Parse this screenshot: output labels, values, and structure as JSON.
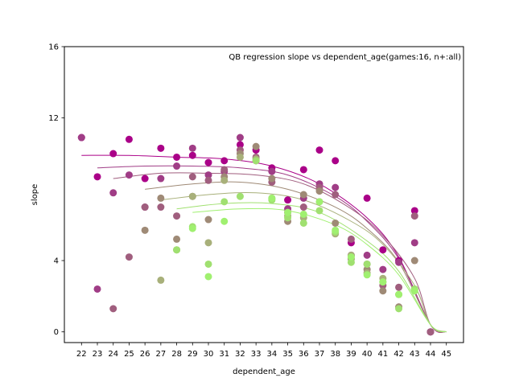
{
  "chart_data": {
    "type": "scatter",
    "title": "QB regression slope vs dependent_age(games:16, n+:all)",
    "xlabel": "dependent_age",
    "ylabel": "slope",
    "x_categories": [
      "22",
      "23",
      "24",
      "25",
      "26",
      "27",
      "28",
      "29",
      "30",
      "31",
      "32",
      "33",
      "34",
      "35",
      "36",
      "37",
      "38",
      "39",
      "40",
      "41",
      "42",
      "43",
      "44",
      "45"
    ],
    "y_ticks": [
      0,
      4,
      12,
      16
    ],
    "ylim": [
      -0.6,
      16
    ],
    "grid": false,
    "series": [
      {
        "color": "#aa0088",
        "points": [
          [
            22,
            10.9
          ],
          [
            23,
            8.7
          ],
          [
            24,
            10.0
          ],
          [
            25,
            10.8
          ],
          [
            26,
            8.6
          ],
          [
            27,
            10.3
          ],
          [
            28,
            9.8
          ],
          [
            29,
            9.9
          ],
          [
            30,
            9.5
          ],
          [
            31,
            9.6
          ],
          [
            32,
            10.5
          ],
          [
            33,
            10.2
          ],
          [
            34,
            9.2
          ],
          [
            35,
            7.4
          ],
          [
            36,
            9.1
          ],
          [
            37,
            10.2
          ],
          [
            38,
            9.6
          ],
          [
            39,
            5.0
          ],
          [
            40,
            7.5
          ],
          [
            41,
            4.6
          ],
          [
            42,
            4.0
          ],
          [
            43,
            6.8
          ],
          [
            44,
            0.0
          ]
        ],
        "curve": [
          [
            22,
            9.9
          ],
          [
            25,
            9.9
          ],
          [
            28,
            9.8
          ],
          [
            31,
            9.7
          ],
          [
            34,
            9.3
          ],
          [
            37,
            8.3
          ],
          [
            40,
            6.4
          ],
          [
            42,
            4.2
          ],
          [
            44,
            0.4
          ],
          [
            45,
            0.0
          ]
        ]
      },
      {
        "color": "#a03d86",
        "points": [
          [
            22,
            10.9
          ],
          [
            23,
            2.4
          ],
          [
            24,
            7.8
          ],
          [
            25,
            8.8
          ],
          [
            26,
            7.0
          ],
          [
            27,
            8.6
          ],
          [
            28,
            9.3
          ],
          [
            29,
            10.3
          ],
          [
            30,
            8.8
          ],
          [
            31,
            9.0
          ],
          [
            32,
            10.9
          ],
          [
            33,
            9.6
          ],
          [
            34,
            9.0
          ],
          [
            35,
            6.9
          ],
          [
            36,
            7.5
          ],
          [
            37,
            8.3
          ],
          [
            38,
            8.1
          ],
          [
            39,
            4.3
          ],
          [
            40,
            4.3
          ],
          [
            41,
            3.5
          ],
          [
            42,
            3.9
          ],
          [
            43,
            5.0
          ],
          [
            44,
            0.0
          ]
        ],
        "curve": [
          [
            23,
            9.2
          ],
          [
            26,
            9.3
          ],
          [
            29,
            9.3
          ],
          [
            32,
            9.2
          ],
          [
            35,
            8.8
          ],
          [
            38,
            7.6
          ],
          [
            40,
            6.2
          ],
          [
            42,
            4.1
          ],
          [
            44,
            0.4
          ],
          [
            45,
            0.0
          ]
        ]
      },
      {
        "color": "#a05e7e",
        "points": [
          [
            24,
            1.3
          ],
          [
            25,
            4.2
          ],
          [
            26,
            7.0
          ],
          [
            27,
            7.0
          ],
          [
            28,
            6.5
          ],
          [
            29,
            8.7
          ],
          [
            30,
            8.5
          ],
          [
            31,
            9.1
          ],
          [
            32,
            10.2
          ],
          [
            33,
            9.8
          ],
          [
            34,
            8.4
          ],
          [
            35,
            6.7
          ],
          [
            36,
            7.0
          ],
          [
            37,
            8.1
          ],
          [
            38,
            7.7
          ],
          [
            39,
            5.2
          ],
          [
            40,
            3.8
          ],
          [
            41,
            2.6
          ],
          [
            42,
            2.5
          ],
          [
            43,
            6.5
          ],
          [
            44,
            0.0
          ]
        ],
        "curve": [
          [
            24,
            8.6
          ],
          [
            27,
            8.9
          ],
          [
            30,
            8.9
          ],
          [
            33,
            8.8
          ],
          [
            36,
            8.3
          ],
          [
            39,
            6.9
          ],
          [
            41,
            5.4
          ],
          [
            43,
            3.0
          ],
          [
            44,
            0.4
          ],
          [
            45,
            0.0
          ]
        ]
      },
      {
        "color": "#9f8a76",
        "points": [
          [
            26,
            5.7
          ],
          [
            27,
            7.5
          ],
          [
            28,
            5.2
          ],
          [
            29,
            7.6
          ],
          [
            30,
            6.3
          ],
          [
            31,
            8.7
          ],
          [
            32,
            10.0
          ],
          [
            33,
            10.4
          ],
          [
            34,
            8.6
          ],
          [
            35,
            6.2
          ],
          [
            36,
            7.7
          ],
          [
            37,
            7.9
          ],
          [
            38,
            6.1
          ],
          [
            39,
            4.1
          ],
          [
            40,
            3.5
          ],
          [
            41,
            2.3
          ],
          [
            42,
            1.4
          ],
          [
            43,
            4.0
          ]
        ],
        "curve": [
          [
            26,
            8.0
          ],
          [
            29,
            8.3
          ],
          [
            32,
            8.4
          ],
          [
            35,
            8.0
          ],
          [
            38,
            7.0
          ],
          [
            40,
            5.8
          ],
          [
            42,
            3.9
          ],
          [
            44,
            0.4
          ],
          [
            45,
            0.0
          ]
        ]
      },
      {
        "color": "#a8b07a",
        "points": [
          [
            27,
            2.9
          ],
          [
            28,
            4.6
          ],
          [
            29,
            7.6
          ],
          [
            30,
            5.0
          ],
          [
            31,
            8.5
          ],
          [
            32,
            9.8
          ],
          [
            33,
            9.7
          ],
          [
            34,
            7.5
          ],
          [
            35,
            6.5
          ],
          [
            36,
            6.4
          ],
          [
            37,
            7.3
          ],
          [
            38,
            5.5
          ],
          [
            39,
            4.3
          ],
          [
            40,
            3.3
          ],
          [
            41,
            3.0
          ],
          [
            42,
            2.1
          ],
          [
            43,
            2.4
          ]
        ],
        "curve": [
          [
            27,
            7.4
          ],
          [
            30,
            7.7
          ],
          [
            33,
            7.8
          ],
          [
            36,
            7.4
          ],
          [
            39,
            6.2
          ],
          [
            41,
            4.9
          ],
          [
            43,
            2.6
          ],
          [
            44,
            0.4
          ],
          [
            45,
            0.0
          ]
        ]
      },
      {
        "color": "#a0e070",
        "points": [
          [
            28,
            4.6
          ],
          [
            29,
            5.9
          ],
          [
            30,
            3.8
          ],
          [
            31,
            7.3
          ],
          [
            32,
            7.6
          ],
          [
            33,
            9.6
          ],
          [
            34,
            7.4
          ],
          [
            35,
            6.4
          ],
          [
            36,
            6.1
          ],
          [
            37,
            6.8
          ],
          [
            38,
            5.6
          ],
          [
            39,
            3.9
          ],
          [
            40,
            3.8
          ],
          [
            41,
            2.8
          ],
          [
            42,
            1.3
          ],
          [
            43,
            2.4
          ]
        ],
        "curve": [
          [
            28,
            6.9
          ],
          [
            31,
            7.2
          ],
          [
            34,
            7.2
          ],
          [
            37,
            6.7
          ],
          [
            40,
            5.1
          ],
          [
            42,
            3.4
          ],
          [
            44,
            0.4
          ],
          [
            45,
            0.0
          ]
        ]
      },
      {
        "color": "#a0f070",
        "points": [
          [
            29,
            5.8
          ],
          [
            30,
            3.1
          ],
          [
            31,
            6.2
          ],
          [
            34,
            7.5
          ],
          [
            35,
            6.7
          ],
          [
            36,
            6.6
          ],
          [
            37,
            7.3
          ],
          [
            38,
            5.7
          ],
          [
            39,
            4.2
          ],
          [
            40,
            3.2
          ],
          [
            41,
            2.8
          ],
          [
            42,
            2.1
          ],
          [
            43,
            2.3
          ]
        ],
        "curve": [
          [
            29,
            6.7
          ],
          [
            32,
            6.9
          ],
          [
            35,
            6.8
          ],
          [
            38,
            6.0
          ],
          [
            40,
            4.9
          ],
          [
            42,
            3.2
          ],
          [
            44,
            0.4
          ],
          [
            45,
            0.0
          ]
        ]
      }
    ]
  }
}
